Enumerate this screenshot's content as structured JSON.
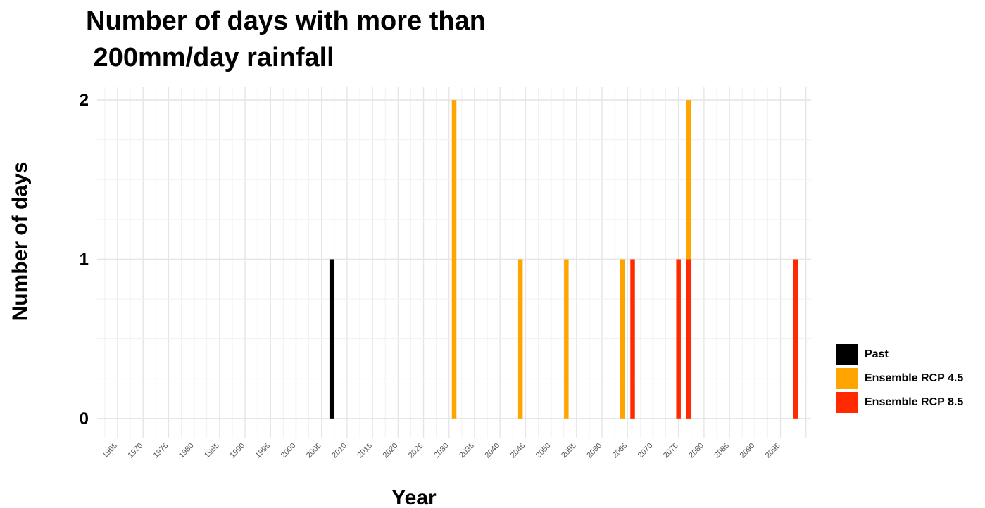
{
  "chart_data": {
    "type": "bar",
    "title_lines": [
      "Number of days with more than",
      " 200mm/day rainfall"
    ],
    "xlabel": "Year",
    "ylabel": "Number of days",
    "xlim": [
      1961,
      2101
    ],
    "ylim": [
      -0.12,
      2.08
    ],
    "x_ticks": [
      1965,
      1970,
      1975,
      1980,
      1985,
      1990,
      1995,
      2000,
      2005,
      2010,
      2015,
      2020,
      2025,
      2030,
      2035,
      2040,
      2045,
      2050,
      2055,
      2060,
      2065,
      2070,
      2075,
      2080,
      2085,
      2090,
      2095
    ],
    "y_ticks": [
      0,
      1,
      2
    ],
    "grid": true,
    "legend_position": "right",
    "series": [
      {
        "name": "Past",
        "color": "#000000",
        "points": [
          {
            "x": 2007,
            "y": 1
          }
        ]
      },
      {
        "name": "Ensemble RCP 4.5",
        "color": "#FFA500",
        "points": [
          {
            "x": 2031,
            "y": 2
          },
          {
            "x": 2044,
            "y": 1
          },
          {
            "x": 2053,
            "y": 1
          },
          {
            "x": 2064,
            "y": 1
          },
          {
            "x": 2077,
            "y": 2
          }
        ]
      },
      {
        "name": "Ensemble RCP 8.5",
        "color": "#FF2A00",
        "points": [
          {
            "x": 2066,
            "y": 1
          },
          {
            "x": 2075,
            "y": 1
          },
          {
            "x": 2077,
            "y": 1
          },
          {
            "x": 2098,
            "y": 1
          }
        ]
      }
    ]
  }
}
